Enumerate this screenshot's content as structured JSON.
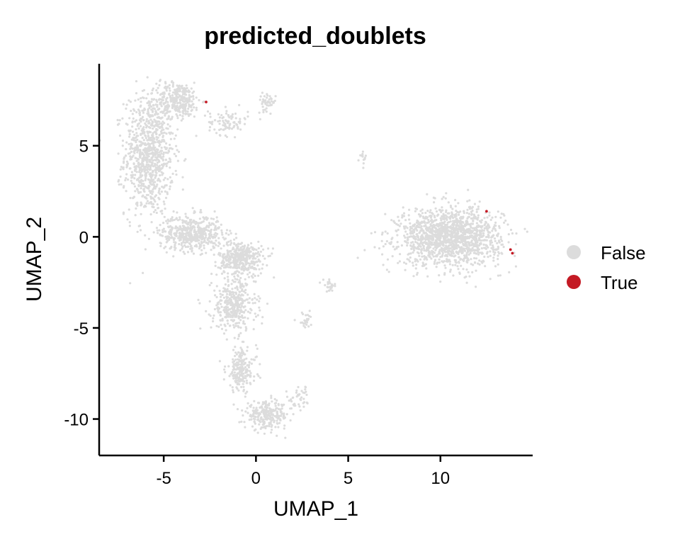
{
  "chart_data": {
    "type": "scatter",
    "title": "predicted_doublets",
    "xlabel": "UMAP_1",
    "ylabel": "UMAP_2",
    "xlim": [
      -8.5,
      15
    ],
    "ylim": [
      -12,
      9.5
    ],
    "xticks": [
      -5,
      0,
      5,
      10
    ],
    "yticks": [
      -10,
      -5,
      0,
      5
    ],
    "xtick_labels": [
      "-5",
      "0",
      "5",
      "10"
    ],
    "ytick_labels": [
      "-10",
      "-5",
      "0",
      "5"
    ],
    "grid": false,
    "legend": {
      "position": "right",
      "entries": [
        {
          "label": "False",
          "color": "#DCDCDC"
        },
        {
          "label": "True",
          "color": "#C41A24"
        }
      ]
    },
    "series": [
      {
        "name": "False",
        "color": "#DCDCDC",
        "regions": [
          {
            "region": "upper-arc",
            "cx": -5.8,
            "cy": 4.5,
            "sx": 1.1,
            "sy": 2.8,
            "n": 900
          },
          {
            "region": "top-arc",
            "cx": -4.2,
            "cy": 7.5,
            "sx": 1.0,
            "sy": 0.8,
            "n": 300
          },
          {
            "region": "top-right-tail",
            "cx": -1.5,
            "cy": 6.3,
            "sx": 0.9,
            "sy": 0.6,
            "n": 90
          },
          {
            "region": "top-right-tip",
            "cx": 0.6,
            "cy": 7.4,
            "sx": 0.4,
            "sy": 0.4,
            "n": 45
          },
          {
            "region": "mid-band",
            "cx": -3.5,
            "cy": 0.2,
            "sx": 1.4,
            "sy": 0.8,
            "n": 500
          },
          {
            "region": "center-right",
            "cx": -0.8,
            "cy": -1.2,
            "sx": 1.0,
            "sy": 0.8,
            "n": 400
          },
          {
            "region": "center-lower",
            "cx": -1.2,
            "cy": -3.8,
            "sx": 1.0,
            "sy": 1.2,
            "n": 350
          },
          {
            "region": "descending-tail",
            "cx": -0.8,
            "cy": -7.3,
            "sx": 0.7,
            "sy": 1.0,
            "n": 200
          },
          {
            "region": "bottom",
            "cx": 0.6,
            "cy": -9.8,
            "sx": 1.0,
            "sy": 0.6,
            "n": 260
          },
          {
            "region": "bottom-right-tail",
            "cx": 2.4,
            "cy": -8.9,
            "sx": 0.5,
            "sy": 0.6,
            "n": 40
          },
          {
            "region": "small-cluster-a",
            "cx": 4.0,
            "cy": -2.7,
            "sx": 0.3,
            "sy": 0.25,
            "n": 25
          },
          {
            "region": "small-cluster-b",
            "cx": 5.8,
            "cy": 4.4,
            "sx": 0.15,
            "sy": 0.3,
            "n": 14
          },
          {
            "region": "streak",
            "cx": 2.7,
            "cy": -4.6,
            "sx": 0.4,
            "sy": 0.35,
            "n": 25
          },
          {
            "region": "right-cluster",
            "cx": 10.5,
            "cy": 0.0,
            "sx": 2.3,
            "sy": 1.3,
            "n": 1500
          }
        ]
      },
      {
        "name": "True",
        "color": "#C41A24",
        "points": [
          {
            "x": -2.7,
            "y": 7.4
          },
          {
            "x": 12.5,
            "y": 1.4
          },
          {
            "x": 13.8,
            "y": -0.7
          },
          {
            "x": 13.9,
            "y": -0.9
          }
        ]
      }
    ]
  }
}
